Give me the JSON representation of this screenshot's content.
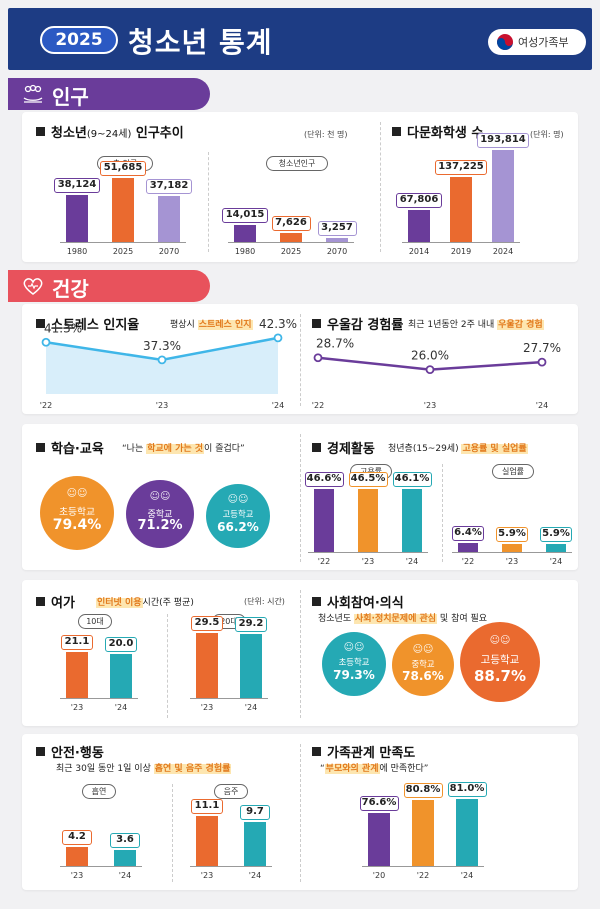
{
  "header": {
    "year": "2025",
    "title": "청소년 통계",
    "ministry": "여성가족부"
  },
  "sections": {
    "population": "인구",
    "health": "건강"
  },
  "colors": {
    "purple": "#6a3c9a",
    "orange": "#ea6a2f",
    "light_purple": "#a594d3",
    "amber": "#f0932b",
    "teal": "#25a9b4",
    "header": "#1d3c84"
  },
  "icons": [
    "family-icon",
    "heart-icon",
    "ministry-logo-icon",
    "student-icon"
  ],
  "population_trend": {
    "title": "청소년",
    "title_sub": "(9~24세)",
    "title_end": " 인구추이",
    "unit": "(단위: 천 명)",
    "left_label": "총 인구",
    "right_label": "청소년인구",
    "chart_data": [
      {
        "type": "bar",
        "title": "총 인구",
        "categories": [
          "1980",
          "2025",
          "2070"
        ],
        "values": [
          38124,
          51685,
          37182
        ],
        "labels": [
          "38,124",
          "51,685",
          "37,182"
        ],
        "ylim": [
          0,
          55000
        ]
      },
      {
        "type": "bar",
        "title": "청소년인구",
        "categories": [
          "1980",
          "2025",
          "2070"
        ],
        "values": [
          14015,
          7626,
          3257
        ],
        "labels": [
          "14,015",
          "7,626",
          "3,257"
        ],
        "ylim": [
          0,
          55000
        ]
      }
    ]
  },
  "multicultural": {
    "title": "다문화학생 수",
    "unit": "(단위: 명)",
    "chart_data": {
      "type": "bar",
      "categories": [
        "2014",
        "2019",
        "2024"
      ],
      "values": [
        67806,
        137225,
        193814
      ],
      "labels": [
        "67,806",
        "137,225",
        "193,814"
      ],
      "ylim": [
        0,
        200000
      ]
    }
  },
  "stress": {
    "title": "스트레스 인지율",
    "note_pre": "평상시 ",
    "note_hl": "스트레스 인지",
    "chart_data": {
      "type": "area",
      "x": [
        "'22",
        "'23",
        "'24"
      ],
      "values": [
        41.3,
        37.3,
        42.3
      ],
      "labels": [
        "41.3",
        "37.3",
        "42.3"
      ],
      "unit": "%",
      "ylim": [
        30,
        45
      ]
    }
  },
  "depression": {
    "title": "우울감 경험률",
    "note_pre": "최근 1년동안 2주 내내 ",
    "note_hl": "우울감 경험",
    "chart_data": {
      "type": "line",
      "x": [
        "'22",
        "'23",
        "'24"
      ],
      "values": [
        28.7,
        26.0,
        27.7
      ],
      "labels": [
        "28.7",
        "26.0",
        "27.7"
      ],
      "unit": "%",
      "ylim": [
        20,
        35
      ]
    }
  },
  "study": {
    "title": "학습·교육",
    "note_pre": "“나는 ",
    "note_hl": "학교에 가는 것",
    "note_post": "이 즐겁다”",
    "chart_data": {
      "type": "bubble",
      "categories": [
        "초등학교",
        "중학교",
        "고등학교"
      ],
      "values": [
        79.4,
        71.2,
        66.2
      ],
      "labels": [
        "79.4",
        "71.2",
        "66.2"
      ],
      "unit": "%"
    }
  },
  "economy": {
    "title": "경제활동",
    "note_pre": "청년층(15~29세) ",
    "note_hl": "고용률 및 실업률",
    "left_label": "고용률",
    "right_label": "실업률",
    "chart_data": [
      {
        "type": "bar",
        "title": "고용률",
        "categories": [
          "'22",
          "'23",
          "'24"
        ],
        "values": [
          46.6,
          46.5,
          46.1
        ],
        "labels": [
          "46.6",
          "46.5",
          "46.1"
        ],
        "unit": "%",
        "ylim": [
          0,
          50
        ]
      },
      {
        "type": "bar",
        "title": "실업률",
        "categories": [
          "'22",
          "'23",
          "'24"
        ],
        "values": [
          6.4,
          5.9,
          5.9
        ],
        "labels": [
          "6.4",
          "5.9",
          "5.9"
        ],
        "unit": "%",
        "ylim": [
          0,
          50
        ]
      }
    ]
  },
  "leisure": {
    "title": "여가",
    "note_hl": "인터넷 이용",
    "note_post": "시간(주 평균)",
    "unit": "(단위: 시간)",
    "left_label": "10대",
    "right_label": "20대",
    "chart_data": [
      {
        "type": "bar",
        "title": "10대",
        "categories": [
          "'23",
          "'24"
        ],
        "values": [
          21.1,
          20.0
        ],
        "labels": [
          "21.1",
          "20.0"
        ],
        "ylim": [
          0,
          32
        ]
      },
      {
        "type": "bar",
        "title": "20대",
        "categories": [
          "'23",
          "'24"
        ],
        "values": [
          29.5,
          29.2
        ],
        "labels": [
          "29.5",
          "29.2"
        ],
        "ylim": [
          0,
          32
        ]
      }
    ]
  },
  "social": {
    "title": "사회참여·의식",
    "note_pre": "청소년도 ",
    "note_hl": "사회·정치문제에 관심",
    "note_post": " 및 참여 필요",
    "chart_data": {
      "type": "bubble",
      "categories": [
        "초등학교",
        "중학교",
        "고등학교"
      ],
      "values": [
        79.3,
        78.6,
        88.7
      ],
      "labels": [
        "79.3",
        "78.6",
        "88.7"
      ],
      "unit": "%"
    }
  },
  "safety": {
    "title": "안전·행동",
    "note_pre": "최근 30일 동안 1일 이상 ",
    "note_hl": "흡연 및 음주 경험률",
    "left_label": "흡연",
    "right_label": "음주",
    "chart_data": [
      {
        "type": "bar",
        "title": "흡연",
        "categories": [
          "'23",
          "'24"
        ],
        "values": [
          4.2,
          3.6
        ],
        "labels": [
          "4.2",
          "3.6"
        ],
        "ylim": [
          0,
          12
        ]
      },
      {
        "type": "bar",
        "title": "음주",
        "categories": [
          "'23",
          "'24"
        ],
        "values": [
          11.1,
          9.7
        ],
        "labels": [
          "11.1",
          "9.7"
        ],
        "ylim": [
          0,
          12
        ]
      }
    ]
  },
  "family": {
    "title": "가족관계 만족도",
    "note_pre": "“",
    "note_hl": "부모와의 관계",
    "note_post": "에 만족한다”",
    "chart_data": {
      "type": "bar",
      "categories": [
        "'20",
        "'22",
        "'24"
      ],
      "values": [
        76.6,
        80.8,
        81.0
      ],
      "labels": [
        "76.6",
        "80.8",
        "81.0"
      ],
      "unit": "%",
      "ylim": [
        60,
        82
      ]
    }
  }
}
